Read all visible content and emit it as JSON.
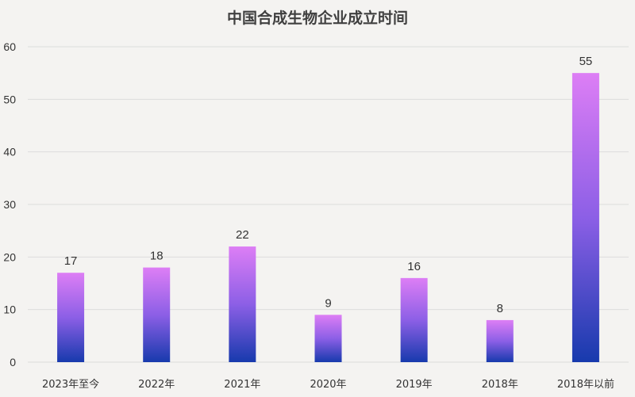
{
  "chart_data": {
    "type": "bar",
    "title": "中国合成生物企业成立时间",
    "xlabel": "",
    "ylabel": "",
    "categories": [
      "2023年至今",
      "2022年",
      "2021年",
      "2020年",
      "2019年",
      "2018年",
      "2018年以前"
    ],
    "values": [
      17,
      18,
      22,
      9,
      16,
      8,
      55
    ],
    "ylim": [
      0,
      60
    ],
    "yticks": [
      0,
      10,
      20,
      30,
      40,
      50,
      60
    ],
    "grid": true,
    "legend": "none",
    "colors": {
      "bar_top": "#dd7ef5",
      "bar_mid": "#8c5fe6",
      "bar_bottom": "#173aad",
      "grid": "#dcdcdc"
    }
  }
}
